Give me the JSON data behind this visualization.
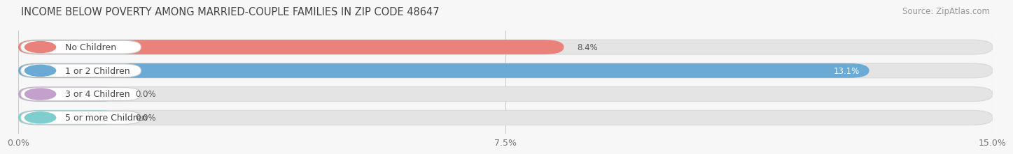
{
  "title": "INCOME BELOW POVERTY AMONG MARRIED-COUPLE FAMILIES IN ZIP CODE 48647",
  "source": "Source: ZipAtlas.com",
  "categories": [
    "No Children",
    "1 or 2 Children",
    "3 or 4 Children",
    "5 or more Children"
  ],
  "values": [
    8.4,
    13.1,
    0.0,
    0.0
  ],
  "bar_colors": [
    "#e8827a",
    "#6aaad4",
    "#c4a0cc",
    "#7ecece"
  ],
  "xlim": [
    0,
    15.0
  ],
  "xticks": [
    0.0,
    7.5,
    15.0
  ],
  "xtick_labels": [
    "0.0%",
    "7.5%",
    "15.0%"
  ],
  "bar_height": 0.62,
  "background_color": "#f7f7f7",
  "bar_background_color": "#e4e4e4",
  "bar_bg_edge_color": "#d8d8d8",
  "title_fontsize": 10.5,
  "label_fontsize": 9,
  "value_fontsize": 8.5,
  "tick_fontsize": 9,
  "source_fontsize": 8.5,
  "zero_bar_value": 1.6
}
